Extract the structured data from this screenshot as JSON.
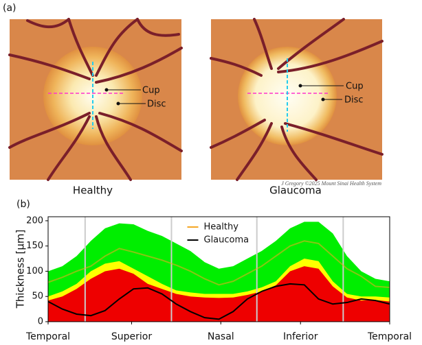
{
  "panel_a": {
    "label": "(a)",
    "healthy": {
      "title": "Healthy",
      "cup": "Cup",
      "disc": "Disc"
    },
    "glaucoma": {
      "title": "Glaucoma",
      "cup": "Cup",
      "disc": "Disc"
    },
    "credit": "J Gregory ©2025 Mount Sinai Health System"
  },
  "chart_data": {
    "type": "line",
    "panel_label": "(b)",
    "ylabel": "Thickness [μm]",
    "x": [
      0,
      15,
      30,
      45,
      60,
      75,
      90,
      105,
      120,
      135,
      150,
      165,
      180,
      195,
      210,
      225,
      240,
      255,
      270,
      285,
      300,
      315,
      330,
      345,
      360
    ],
    "xlim": [
      0,
      360
    ],
    "xticks": [
      {
        "value": 0,
        "label": "Temporal"
      },
      {
        "value": 88,
        "label": "Superior"
      },
      {
        "value": 182,
        "label": "Nasal"
      },
      {
        "value": 266,
        "label": "Inferior"
      },
      {
        "value": 360,
        "label": "Temporal"
      }
    ],
    "vlines": [
      39,
      130,
      220,
      311
    ],
    "ylim": [
      0,
      208
    ],
    "yticks": [
      0,
      50,
      100,
      150,
      200
    ],
    "bands": [
      {
        "color": "#00ee00",
        "values": [
          100,
          110,
          130,
          160,
          185,
          195,
          193,
          180,
          170,
          155,
          140,
          118,
          105,
          110,
          125,
          140,
          160,
          185,
          198,
          198,
          175,
          130,
          100,
          85,
          80
        ]
      },
      {
        "color": "#ffff00",
        "values": [
          50,
          60,
          75,
          100,
          115,
          120,
          105,
          90,
          75,
          62,
          58,
          55,
          55,
          55,
          60,
          68,
          80,
          110,
          125,
          120,
          80,
          55,
          50,
          50,
          48
        ]
      },
      {
        "color": "#ee0000",
        "values": [
          42,
          50,
          65,
          85,
          100,
          105,
          95,
          75,
          65,
          55,
          50,
          48,
          47,
          48,
          53,
          60,
          72,
          100,
          110,
          105,
          70,
          48,
          42,
          43,
          40
        ]
      }
    ],
    "series": [
      {
        "name": "Healthy",
        "color": "#f5a623",
        "values": [
          78,
          88,
          100,
          110,
          130,
          145,
          138,
          130,
          122,
          112,
          100,
          85,
          73,
          80,
          95,
          110,
          130,
          150,
          160,
          155,
          130,
          105,
          90,
          70,
          68
        ]
      },
      {
        "name": "Glaucoma",
        "color": "#000000",
        "values": [
          40,
          25,
          15,
          12,
          22,
          45,
          65,
          67,
          55,
          35,
          20,
          8,
          5,
          20,
          45,
          60,
          70,
          75,
          73,
          45,
          35,
          38,
          45,
          42,
          35
        ]
      }
    ],
    "legend": "upper center"
  }
}
